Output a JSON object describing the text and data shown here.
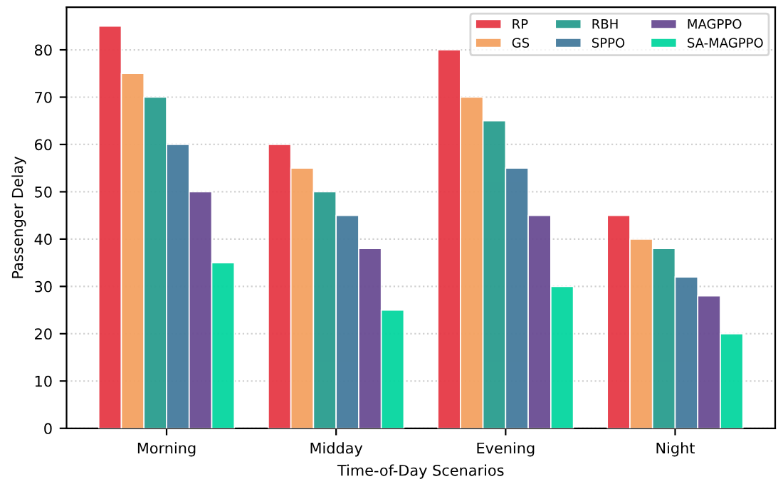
{
  "chart_data": {
    "type": "bar",
    "xlabel": "Time-of-Day Scenarios",
    "ylabel": "Passenger Delay",
    "categories": [
      "Morning",
      "Midday",
      "Evening",
      "Night"
    ],
    "series": [
      {
        "name": "RP",
        "color": "#e63946",
        "values": [
          85,
          60,
          80,
          45
        ]
      },
      {
        "name": "GS",
        "color": "#f4a261",
        "values": [
          75,
          55,
          70,
          40
        ]
      },
      {
        "name": "RBH",
        "color": "#2a9d8f",
        "values": [
          70,
          50,
          65,
          38
        ]
      },
      {
        "name": "SPPO",
        "color": "#457b9d",
        "values": [
          60,
          45,
          55,
          32
        ]
      },
      {
        "name": "MAGPPO",
        "color": "#6a4c93",
        "values": [
          50,
          38,
          45,
          28
        ]
      },
      {
        "name": "SA-MAGPPO",
        "color": "#06d6a0",
        "values": [
          35,
          25,
          30,
          20
        ]
      }
    ],
    "ylim": [
      0,
      89
    ],
    "yticks": [
      0,
      10,
      20,
      30,
      40,
      50,
      60,
      70,
      80
    ],
    "grid": "y",
    "legend": "top right"
  }
}
